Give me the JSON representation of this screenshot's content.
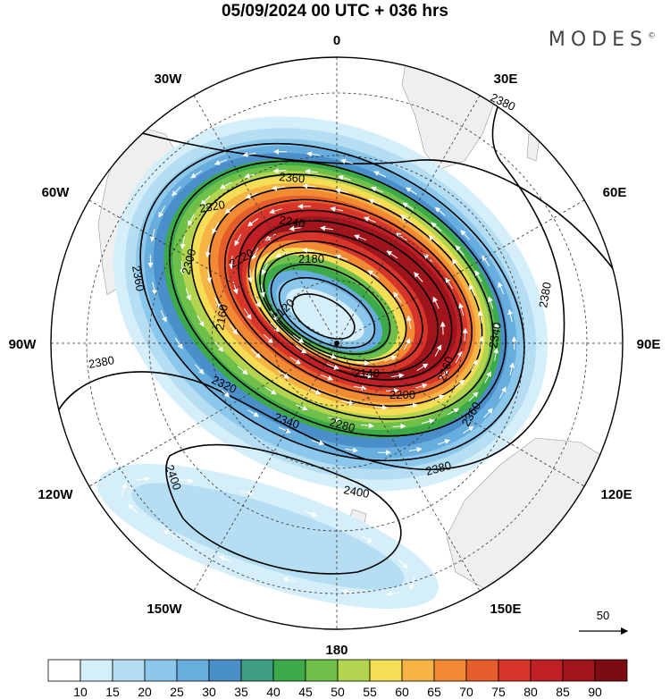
{
  "title": "05/09/2024  00 UTC  + 036 hrs",
  "brand": "MODES",
  "brand_mark": "©",
  "map": {
    "projection": "polar-stereographic-south",
    "longitude_labels": [
      "0",
      "30E",
      "60E",
      "90E",
      "120E",
      "150E",
      "180",
      "150W",
      "120W",
      "90W",
      "60W",
      "30W"
    ],
    "contour_labels": [
      "2380",
      "2360",
      "2340",
      "2320",
      "2300",
      "2280",
      "2260",
      "2240",
      "2220",
      "2200",
      "2180",
      "2160",
      "2140",
      "2120",
      "2400"
    ],
    "reference_vector": "50"
  },
  "colorbar": {
    "labels": [
      "10",
      "15",
      "20",
      "25",
      "30",
      "35",
      "40",
      "45",
      "50",
      "55",
      "60",
      "65",
      "70",
      "75",
      "80",
      "85",
      "90"
    ],
    "colors": [
      "#ffffff",
      "#d4eefa",
      "#b5def3",
      "#8cc8eb",
      "#67aedf",
      "#4a8fc9",
      "#3d9e82",
      "#3daa4a",
      "#6fc04a",
      "#b2d44e",
      "#f5dd55",
      "#f6b444",
      "#f18a33",
      "#e65d2c",
      "#d8352a",
      "#c01f26",
      "#a0141c",
      "#7c0c12"
    ]
  },
  "colors": {
    "land": "#efefef",
    "contour": "#000000",
    "vector": "#ffffff"
  }
}
